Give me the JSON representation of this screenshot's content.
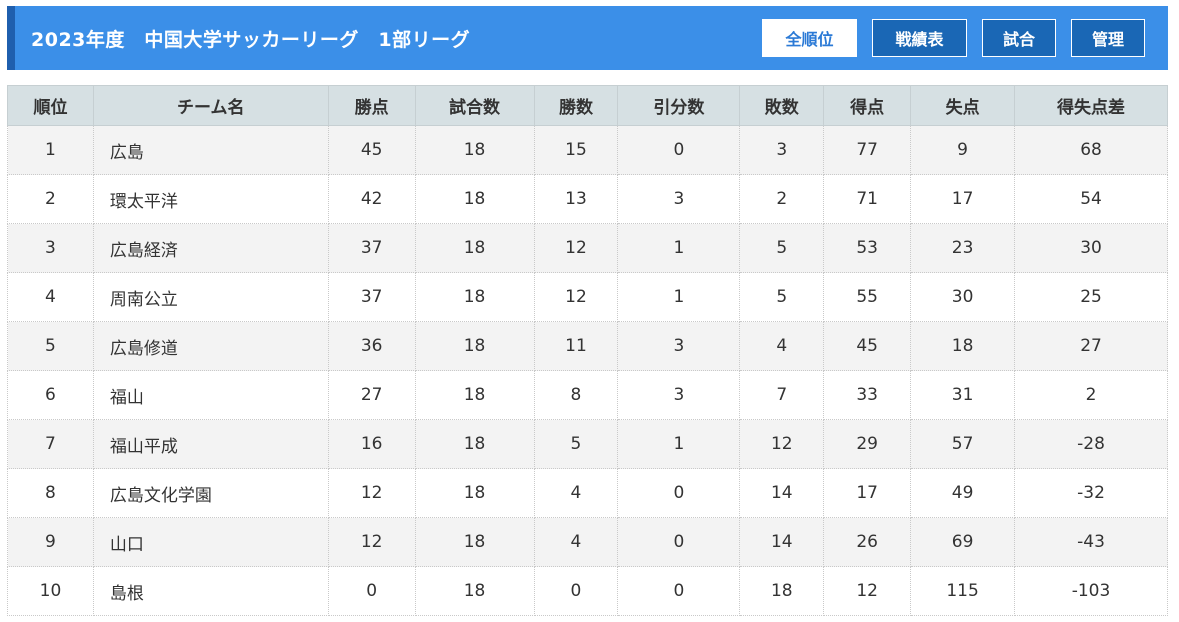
{
  "header": {
    "title": "2023年度　中国大学サッカーリーグ　1部リーグ",
    "buttons": [
      "全順位",
      "戦績表",
      "試合",
      "管理"
    ]
  },
  "table": {
    "columns": [
      "順位",
      "チーム名",
      "勝点",
      "試合数",
      "勝数",
      "引分数",
      "敗数",
      "得点",
      "失点",
      "得失点差"
    ],
    "rows": [
      [
        "1",
        "広島",
        "45",
        "18",
        "15",
        "0",
        "3",
        "77",
        "9",
        "68"
      ],
      [
        "2",
        "環太平洋",
        "42",
        "18",
        "13",
        "3",
        "2",
        "71",
        "17",
        "54"
      ],
      [
        "3",
        "広島経済",
        "37",
        "18",
        "12",
        "1",
        "5",
        "53",
        "23",
        "30"
      ],
      [
        "4",
        "周南公立",
        "37",
        "18",
        "12",
        "1",
        "5",
        "55",
        "30",
        "25"
      ],
      [
        "5",
        "広島修道",
        "36",
        "18",
        "11",
        "3",
        "4",
        "45",
        "18",
        "27"
      ],
      [
        "6",
        "福山",
        "27",
        "18",
        "8",
        "3",
        "7",
        "33",
        "31",
        "2"
      ],
      [
        "7",
        "福山平成",
        "16",
        "18",
        "5",
        "1",
        "12",
        "29",
        "57",
        "-28"
      ],
      [
        "8",
        "広島文化学園",
        "12",
        "18",
        "4",
        "0",
        "14",
        "17",
        "49",
        "-32"
      ],
      [
        "9",
        "山口",
        "12",
        "18",
        "4",
        "0",
        "14",
        "26",
        "69",
        "-43"
      ],
      [
        "10",
        "島根",
        "0",
        "18",
        "0",
        "0",
        "18",
        "12",
        "115",
        "-103"
      ]
    ]
  }
}
